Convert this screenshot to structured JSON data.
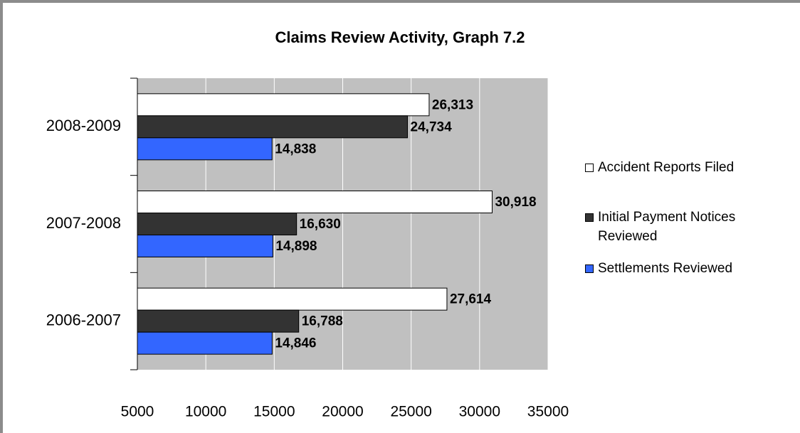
{
  "chart_data": {
    "type": "hbar",
    "title": "Claims Review Activity, Graph 7.2",
    "categories": [
      "2008-2009",
      "2007-2008",
      "2006-2007"
    ],
    "series": [
      {
        "name": "Accident Reports Filed",
        "color": "#ffffff",
        "values": [
          26313,
          30918,
          27614
        ],
        "value_labels": [
          "26,313",
          "30,918",
          "27,614"
        ]
      },
      {
        "name": "Initial Payment Notices Reviewed",
        "color": "#333333",
        "values": [
          24734,
          16630,
          16788
        ],
        "value_labels": [
          "24,734",
          "16,630",
          "16,788"
        ]
      },
      {
        "name": "Settlements Reviewed",
        "color": "#3366ff",
        "values": [
          14838,
          14898,
          14846
        ],
        "value_labels": [
          "14,838",
          "14,898",
          "14,846"
        ]
      }
    ],
    "xlim": [
      5000,
      35000
    ],
    "xticks": [
      5000,
      10000,
      15000,
      20000,
      25000,
      30000,
      35000
    ],
    "grid": true,
    "plot_background": "#c0c0c0",
    "legend": "right"
  }
}
